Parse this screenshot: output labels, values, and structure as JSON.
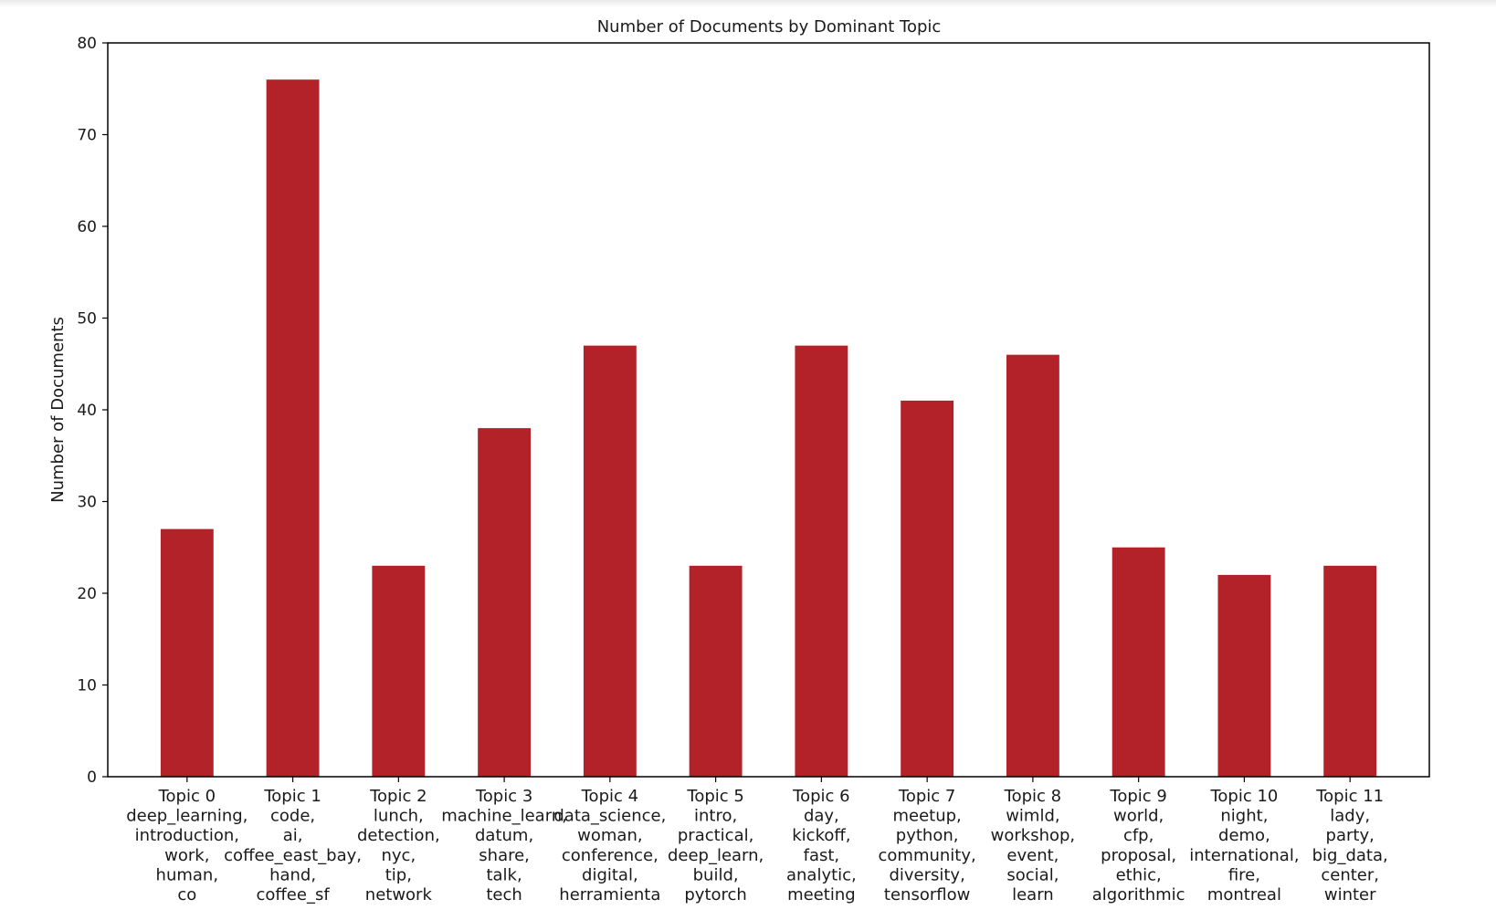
{
  "chart_data": {
    "type": "bar",
    "title": "Number of Documents by Dominant Topic",
    "xlabel": "",
    "ylabel": "Number of Documents",
    "ylim": [
      0,
      80
    ],
    "yticks": [
      0,
      10,
      20,
      30,
      40,
      50,
      60,
      70,
      80
    ],
    "grid": false,
    "bar_color": "#b22228",
    "categories": [
      "Topic 0\ndeep_learning,\nintroduction,\nwork,\nhuman,\nco",
      "Topic 1\ncode,\nai,\ncoffee_east_bay,\nhand,\ncoffee_sf",
      "Topic 2\nlunch,\ndetection,\nnyc,\ntip,\nnetwork",
      "Topic 3\nmachine_learn,\ndatum,\nshare,\ntalk,\ntech",
      "Topic 4\ndata_science,\nwoman,\nconference,\ndigital,\nherramienta",
      "Topic 5\nintro,\npractical,\ndeep_learn,\nbuild,\npytorch",
      "Topic 6\nday,\nkickoff,\nfast,\nanalytic,\nmeeting",
      "Topic 7\nmeetup,\npython,\ncommunity,\ndiversity,\ntensorflow",
      "Topic 8\nwimld,\nworkshop,\nevent,\nsocial,\nlearn",
      "Topic 9\nworld,\ncfp,\nproposal,\nethic,\nalgorithmic",
      "Topic 10\nnight,\ndemo,\ninternational,\nfire,\nmontreal",
      "Topic 11\nlady,\nparty,\nbig_data,\ncenter,\nwinter"
    ],
    "values": [
      27,
      76,
      23,
      38,
      47,
      23,
      47,
      41,
      46,
      25,
      22,
      23
    ]
  }
}
